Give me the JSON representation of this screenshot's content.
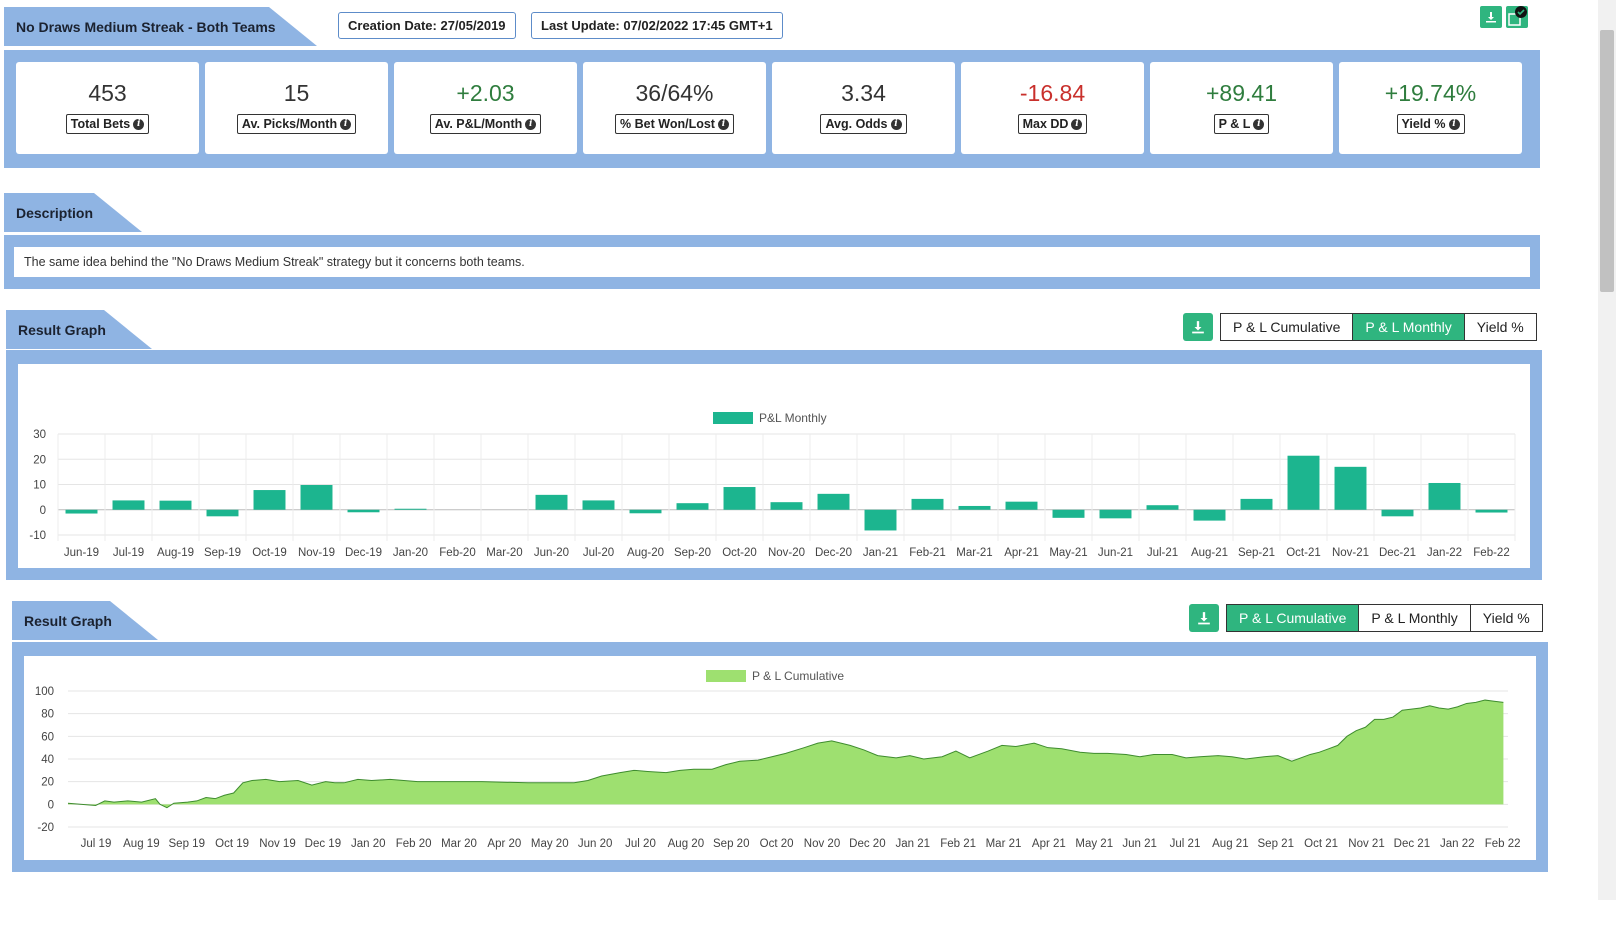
{
  "header": {
    "title": "No Draws Medium Streak - Both Teams",
    "creation_date": "Creation Date: 27/05/2019",
    "last_update": "Last Update: 07/02/2022 17:45 GMT+1",
    "icons": [
      "download-icon",
      "check-circle-icon"
    ]
  },
  "stats": [
    {
      "value": "453",
      "label": "Total Bets",
      "tone": "neutral"
    },
    {
      "value": "15",
      "label": "Av. Picks/Month",
      "tone": "neutral"
    },
    {
      "value": "+2.03",
      "label": "Av. P&L/Month",
      "tone": "pos"
    },
    {
      "value": "36/64%",
      "label": "% Bet Won/Lost",
      "tone": "neutral"
    },
    {
      "value": "3.34",
      "label": "Avg. Odds",
      "tone": "neutral"
    },
    {
      "value": "-16.84",
      "label": "Max DD",
      "tone": "neg"
    },
    {
      "value": "+89.41",
      "label": "P & L",
      "tone": "pos"
    },
    {
      "value": "+19.74%",
      "label": "Yield %",
      "tone": "pos"
    }
  ],
  "description": {
    "title": "Description",
    "text": "The same idea behind the \"No Draws Medium Streak\" strategy but it concerns both teams."
  },
  "graph1": {
    "title": "Result Graph",
    "buttons": [
      "P & L Cumulative",
      "P & L Monthly",
      "Yield %"
    ],
    "active": 1
  },
  "graph2": {
    "title": "Result Graph",
    "buttons": [
      "P & L Cumulative",
      "P & L Monthly",
      "Yield %"
    ],
    "active": 0
  },
  "colors": {
    "accent": "#2fb57f",
    "panel": "#8fb4e3",
    "bar": "#1cb58f",
    "area": "#9ee070",
    "area_line": "#3e8c2e",
    "neg": "#c9302c",
    "pos": "#2f7d3e"
  },
  "chart_data": [
    {
      "type": "bar",
      "title": "",
      "legend": [
        "P&L Monthly"
      ],
      "categories": [
        "Jun-19",
        "Jul-19",
        "Aug-19",
        "Sep-19",
        "Oct-19",
        "Nov-19",
        "Dec-19",
        "Jan-20",
        "Feb-20",
        "Mar-20",
        "Jun-20",
        "Jul-20",
        "Aug-20",
        "Sep-20",
        "Oct-20",
        "Nov-20",
        "Dec-20",
        "Jan-21",
        "Feb-21",
        "Mar-21",
        "Apr-21",
        "May-21",
        "Jun-21",
        "Jul-21",
        "Aug-21",
        "Sep-21",
        "Oct-21",
        "Nov-21",
        "Dec-21",
        "Jan-22",
        "Feb-22"
      ],
      "series": [
        {
          "name": "P&L Monthly",
          "values": [
            -1.5,
            3.7,
            3.6,
            -2.6,
            7.8,
            9.8,
            -1.0,
            0.4,
            0,
            0,
            5.9,
            3.7,
            -1.4,
            2.6,
            9.0,
            3.0,
            6.3,
            -8.2,
            4.3,
            1.5,
            3.2,
            -3.2,
            -3.4,
            1.8,
            -4.3,
            4.3,
            21.4,
            17.0,
            -2.6,
            10.6,
            -1.1
          ]
        }
      ],
      "yticks": [
        30,
        20,
        10,
        0,
        -10
      ],
      "ylim": [
        -10,
        30
      ],
      "xlabel": "",
      "ylabel": "",
      "legend_position": "top-center"
    },
    {
      "type": "area",
      "title": "",
      "legend": [
        "P & L Cumulative"
      ],
      "x_ticks": [
        "Jul 19",
        "Aug 19",
        "Sep 19",
        "Oct 19",
        "Nov 19",
        "Dec 19",
        "Jan 20",
        "Feb 20",
        "Mar 20",
        "Apr 20",
        "May 20",
        "Jun 20",
        "Jul 20",
        "Aug 20",
        "Sep 20",
        "Oct 20",
        "Nov 20",
        "Dec 20",
        "Jan 21",
        "Feb 21",
        "Mar 21",
        "Apr 21",
        "May 21",
        "Jun 21",
        "Jul 21",
        "Aug 21",
        "Sep 21",
        "Oct 21",
        "Nov 21",
        "Dec 21",
        "Jan 22",
        "Feb 22"
      ],
      "series": [
        {
          "name": "P & L Cumulative",
          "x": [
            0,
            0.3,
            0.6,
            0.8,
            1.0,
            1.3,
            1.6,
            1.9,
            2.0,
            2.05,
            2.15,
            2.3,
            2.6,
            2.8,
            3.0,
            3.2,
            3.4,
            3.6,
            3.8,
            4.0,
            4.3,
            4.6,
            5.0,
            5.3,
            5.6,
            5.8,
            6.0,
            6.3,
            6.6,
            7.0,
            7.3,
            7.6,
            8.0,
            8.5,
            9.0,
            10.0,
            11.0,
            11.3,
            11.6,
            12.0,
            12.3,
            12.6,
            13.0,
            13.3,
            13.6,
            14.0,
            14.3,
            14.6,
            15.0,
            15.3,
            15.6,
            16.0,
            16.3,
            16.6,
            17.0,
            17.3,
            17.6,
            18.0,
            18.3,
            18.6,
            19.0,
            19.3,
            19.6,
            20.0,
            20.3,
            20.6,
            21.0,
            21.3,
            21.6,
            22.0,
            22.3,
            22.6,
            23.0,
            23.3,
            23.6,
            24.0,
            24.3,
            24.6,
            25.0,
            25.3,
            25.6,
            26.0,
            26.3,
            26.6,
            27.0,
            27.2,
            27.4,
            27.6,
            27.8,
            28.0,
            28.2,
            28.4,
            28.6,
            28.8,
            29.0,
            29.2,
            29.4,
            29.6,
            29.8,
            30.0,
            30.2,
            30.4,
            30.6,
            30.8,
            31.0,
            31.2
          ],
          "values": [
            1,
            0,
            -1,
            3,
            2,
            3,
            2,
            5,
            0,
            -1,
            -3,
            1,
            2,
            3,
            6,
            5,
            8,
            10,
            19,
            21,
            22,
            20,
            21,
            17,
            20,
            19,
            19,
            22,
            21,
            22,
            21,
            20,
            20,
            20,
            20,
            19,
            19,
            21,
            25,
            28,
            30,
            29,
            28,
            30,
            31,
            31,
            35,
            38,
            39,
            42,
            45,
            50,
            54,
            56,
            52,
            48,
            43,
            41,
            43,
            40,
            42,
            47,
            41,
            47,
            52,
            51,
            54,
            50,
            49,
            46,
            45,
            45,
            44,
            42,
            44,
            44,
            41,
            42,
            43,
            42,
            40,
            42,
            43,
            38,
            44,
            46,
            49,
            52,
            60,
            65,
            68,
            75,
            75,
            77,
            83,
            84,
            85,
            87,
            85,
            84,
            86,
            89,
            90,
            92,
            91,
            90
          ]
        }
      ],
      "yticks": [
        100,
        80,
        60,
        40,
        20,
        0,
        -20
      ],
      "ylim": [
        -20,
        100
      ],
      "xlabel": "",
      "ylabel": "",
      "legend_position": "top-center"
    }
  ]
}
